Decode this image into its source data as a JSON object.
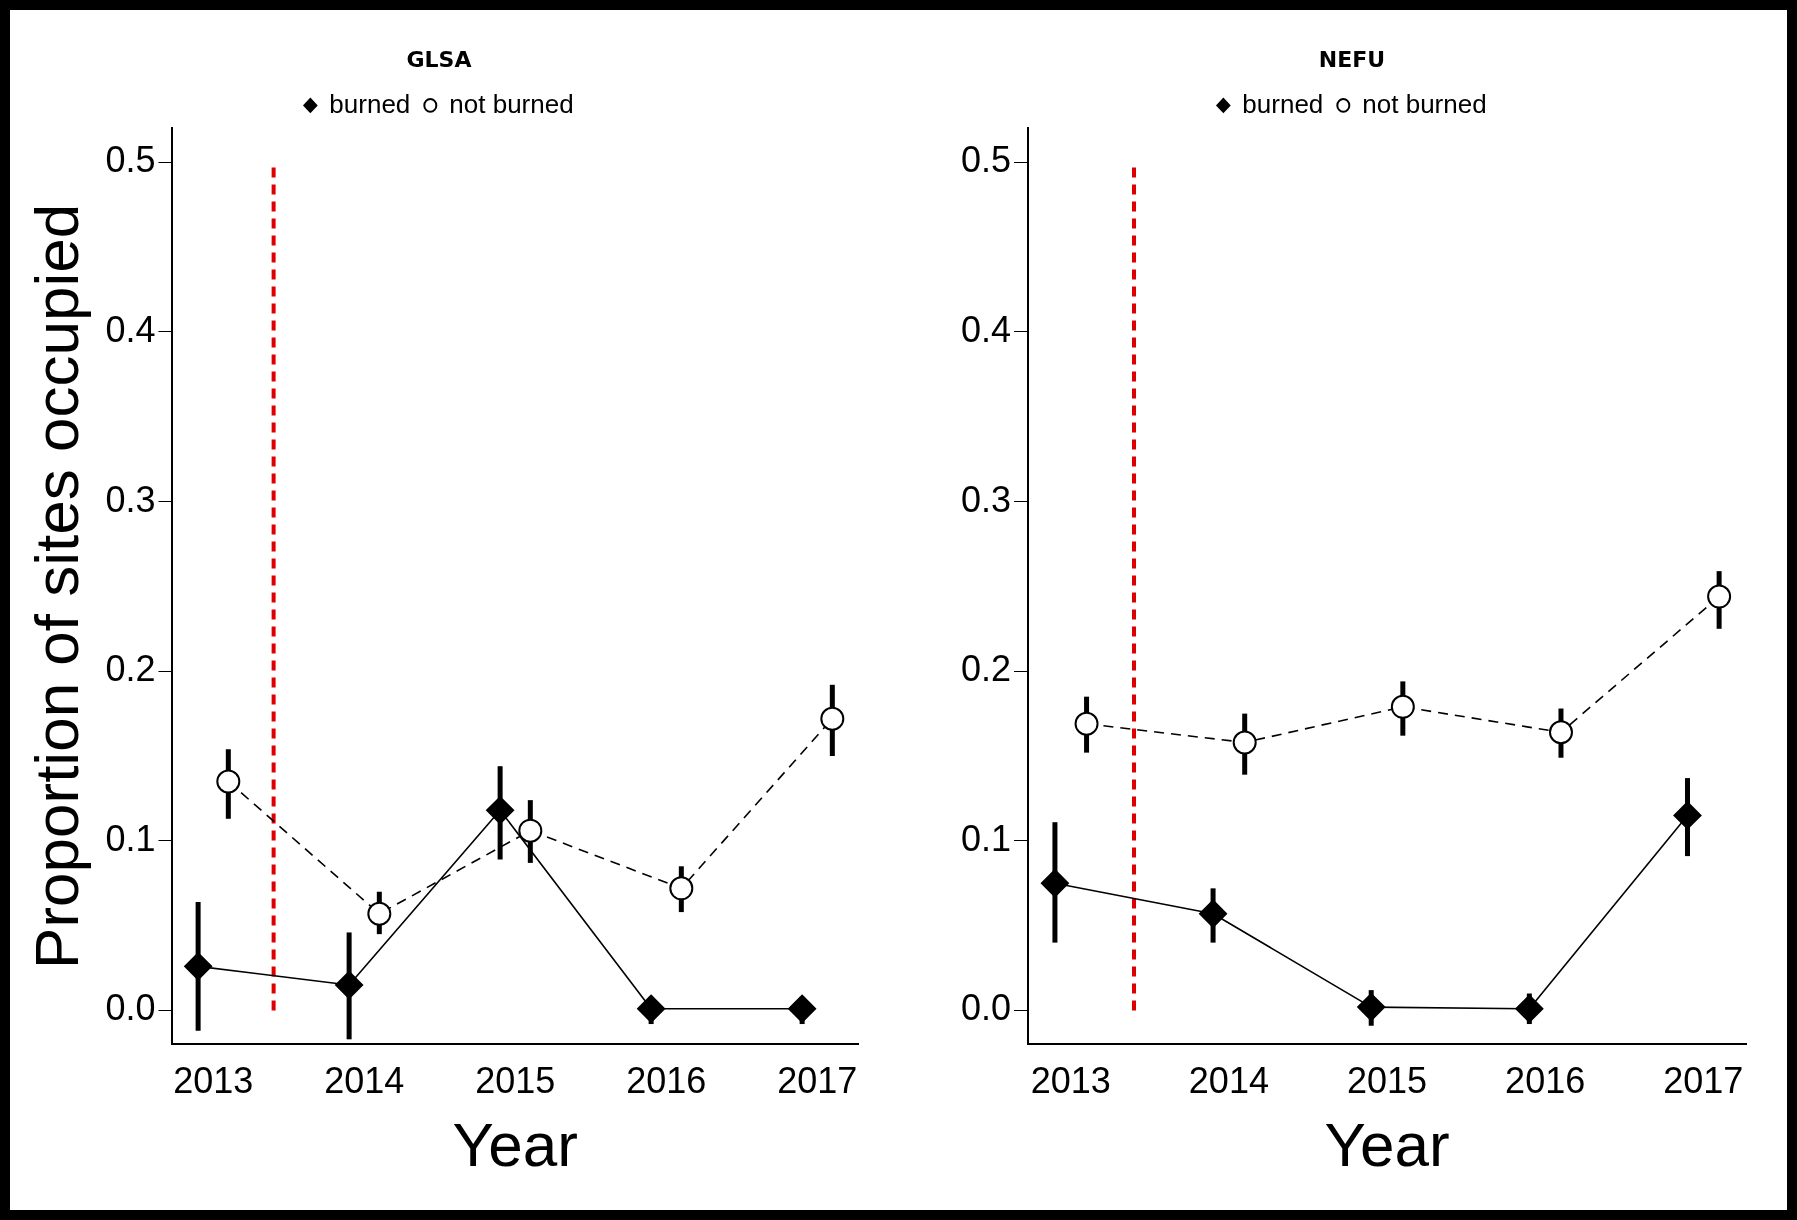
{
  "chart_data": [
    {
      "type": "line",
      "title": "GLSA",
      "xlabel": "Year",
      "ylabel": "Proportion of sites occupied",
      "xlim": [
        2012.73,
        2017.27
      ],
      "xticks": [
        2013,
        2014,
        2015,
        2016,
        2017
      ],
      "ylim": [
        -0.02,
        0.52
      ],
      "yticks": [
        {
          "value": 0,
          "label": "0.0"
        },
        0.1,
        0.2,
        0.3,
        0.4,
        0.5
      ],
      "grid": false,
      "legend": "top",
      "ref_lines": [
        {
          "axis": "x",
          "value": 2013.4,
          "color": "#dd0000",
          "line_style": "dashed"
        }
      ],
      "series": [
        {
          "name": "burned",
          "color": "#000000",
          "marker": "diamond",
          "line_style": "solid",
          "x": [
            2012.9,
            2013.9,
            2014.9,
            2015.9,
            2016.9
          ],
          "values": [
            0.026,
            0.015,
            0.118,
            0.001,
            0.001
          ],
          "errors": [
            [
              -0.012,
              0.064
            ],
            [
              -0.017,
              0.046
            ],
            [
              0.089,
              0.144
            ],
            [
              -0.008,
              0.008
            ],
            [
              -0.008,
              0.008
            ]
          ]
        },
        {
          "name": "not burned",
          "color": "#000000",
          "marker": "circle",
          "line_style": "dashed",
          "x": [
            2013.1,
            2014.1,
            2015.1,
            2016.1,
            2017.1
          ],
          "values": [
            0.135,
            0.057,
            0.106,
            0.072,
            0.172
          ],
          "errors": [
            [
              0.113,
              0.154
            ],
            [
              0.045,
              0.07
            ],
            [
              0.087,
              0.124
            ],
            [
              0.058,
              0.085
            ],
            [
              0.15,
              0.192
            ]
          ]
        }
      ]
    },
    {
      "type": "line",
      "title": "NEFU",
      "xlabel": "Year",
      "xlim": [
        2012.73,
        2017.27
      ],
      "xticks": [
        2013,
        2014,
        2015,
        2016,
        2017
      ],
      "ylim": [
        -0.02,
        0.52
      ],
      "yticks": [
        {
          "value": 0,
          "label": "0.0"
        },
        0.1,
        0.2,
        0.3,
        0.4,
        0.5
      ],
      "grid": false,
      "legend": "top",
      "ref_lines": [
        {
          "axis": "x",
          "value": 2013.4,
          "color": "#dd0000",
          "line_style": "dashed"
        }
      ],
      "series": [
        {
          "name": "burned",
          "color": "#000000",
          "marker": "diamond",
          "line_style": "solid",
          "x": [
            2012.9,
            2013.9,
            2014.9,
            2015.9,
            2016.9
          ],
          "values": [
            0.075,
            0.057,
            0.002,
            0.001,
            0.115
          ],
          "errors": [
            [
              0.04,
              0.111
            ],
            [
              0.04,
              0.072
            ],
            [
              -0.009,
              0.012
            ],
            [
              -0.008,
              0.01
            ],
            [
              0.091,
              0.137
            ]
          ]
        },
        {
          "name": "not burned",
          "color": "#000000",
          "marker": "circle",
          "line_style": "dashed",
          "x": [
            2013.1,
            2014.1,
            2015.1,
            2016.1,
            2017.1
          ],
          "values": [
            0.169,
            0.158,
            0.179,
            0.164,
            0.244
          ],
          "errors": [
            [
              0.152,
              0.185
            ],
            [
              0.139,
              0.175
            ],
            [
              0.162,
              0.194
            ],
            [
              0.149,
              0.178
            ],
            [
              0.225,
              0.259
            ]
          ]
        }
      ]
    }
  ]
}
